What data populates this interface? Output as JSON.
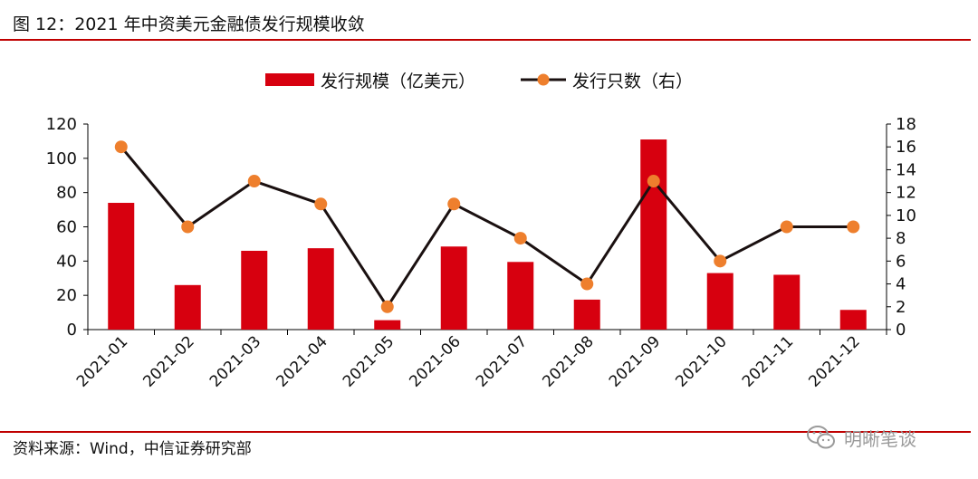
{
  "figure": {
    "title": "图 12：2021 年中资美元金融债发行规模收敛",
    "source": "资料来源：Wind，中信证券研究部",
    "watermark": "明晰笔谈"
  },
  "colors": {
    "bar": "#d7000f",
    "line": "#1a1010",
    "marker": "#ee7f2d",
    "rule": "#c00000",
    "axis": "#000000"
  },
  "chart_data": {
    "type": "bar",
    "title": "",
    "categories": [
      "2021-01",
      "2021-02",
      "2021-03",
      "2021-04",
      "2021-05",
      "2021-06",
      "2021-07",
      "2021-08",
      "2021-09",
      "2021-10",
      "2021-11",
      "2021-12"
    ],
    "series": [
      {
        "name": "发行规模（亿美元）",
        "type": "bar",
        "axis": "left",
        "values": [
          74,
          26,
          46,
          47.5,
          5.5,
          48.5,
          39.5,
          17.5,
          111,
          33,
          32,
          11.5
        ]
      },
      {
        "name": "发行只数（右）",
        "type": "line",
        "axis": "right",
        "values": [
          16,
          9,
          13,
          11,
          2,
          11,
          8,
          4,
          13,
          6,
          9,
          9
        ]
      }
    ],
    "y_left": {
      "min": 0,
      "max": 120,
      "step": 20,
      "ticks": [
        "0",
        "20",
        "40",
        "60",
        "80",
        "100",
        "120"
      ]
    },
    "y_right": {
      "min": 0,
      "max": 18,
      "step": 2,
      "ticks": [
        "0",
        "2",
        "4",
        "6",
        "8",
        "10",
        "12",
        "14",
        "16",
        "18"
      ]
    },
    "legend_position": "top-center",
    "grid": false
  }
}
